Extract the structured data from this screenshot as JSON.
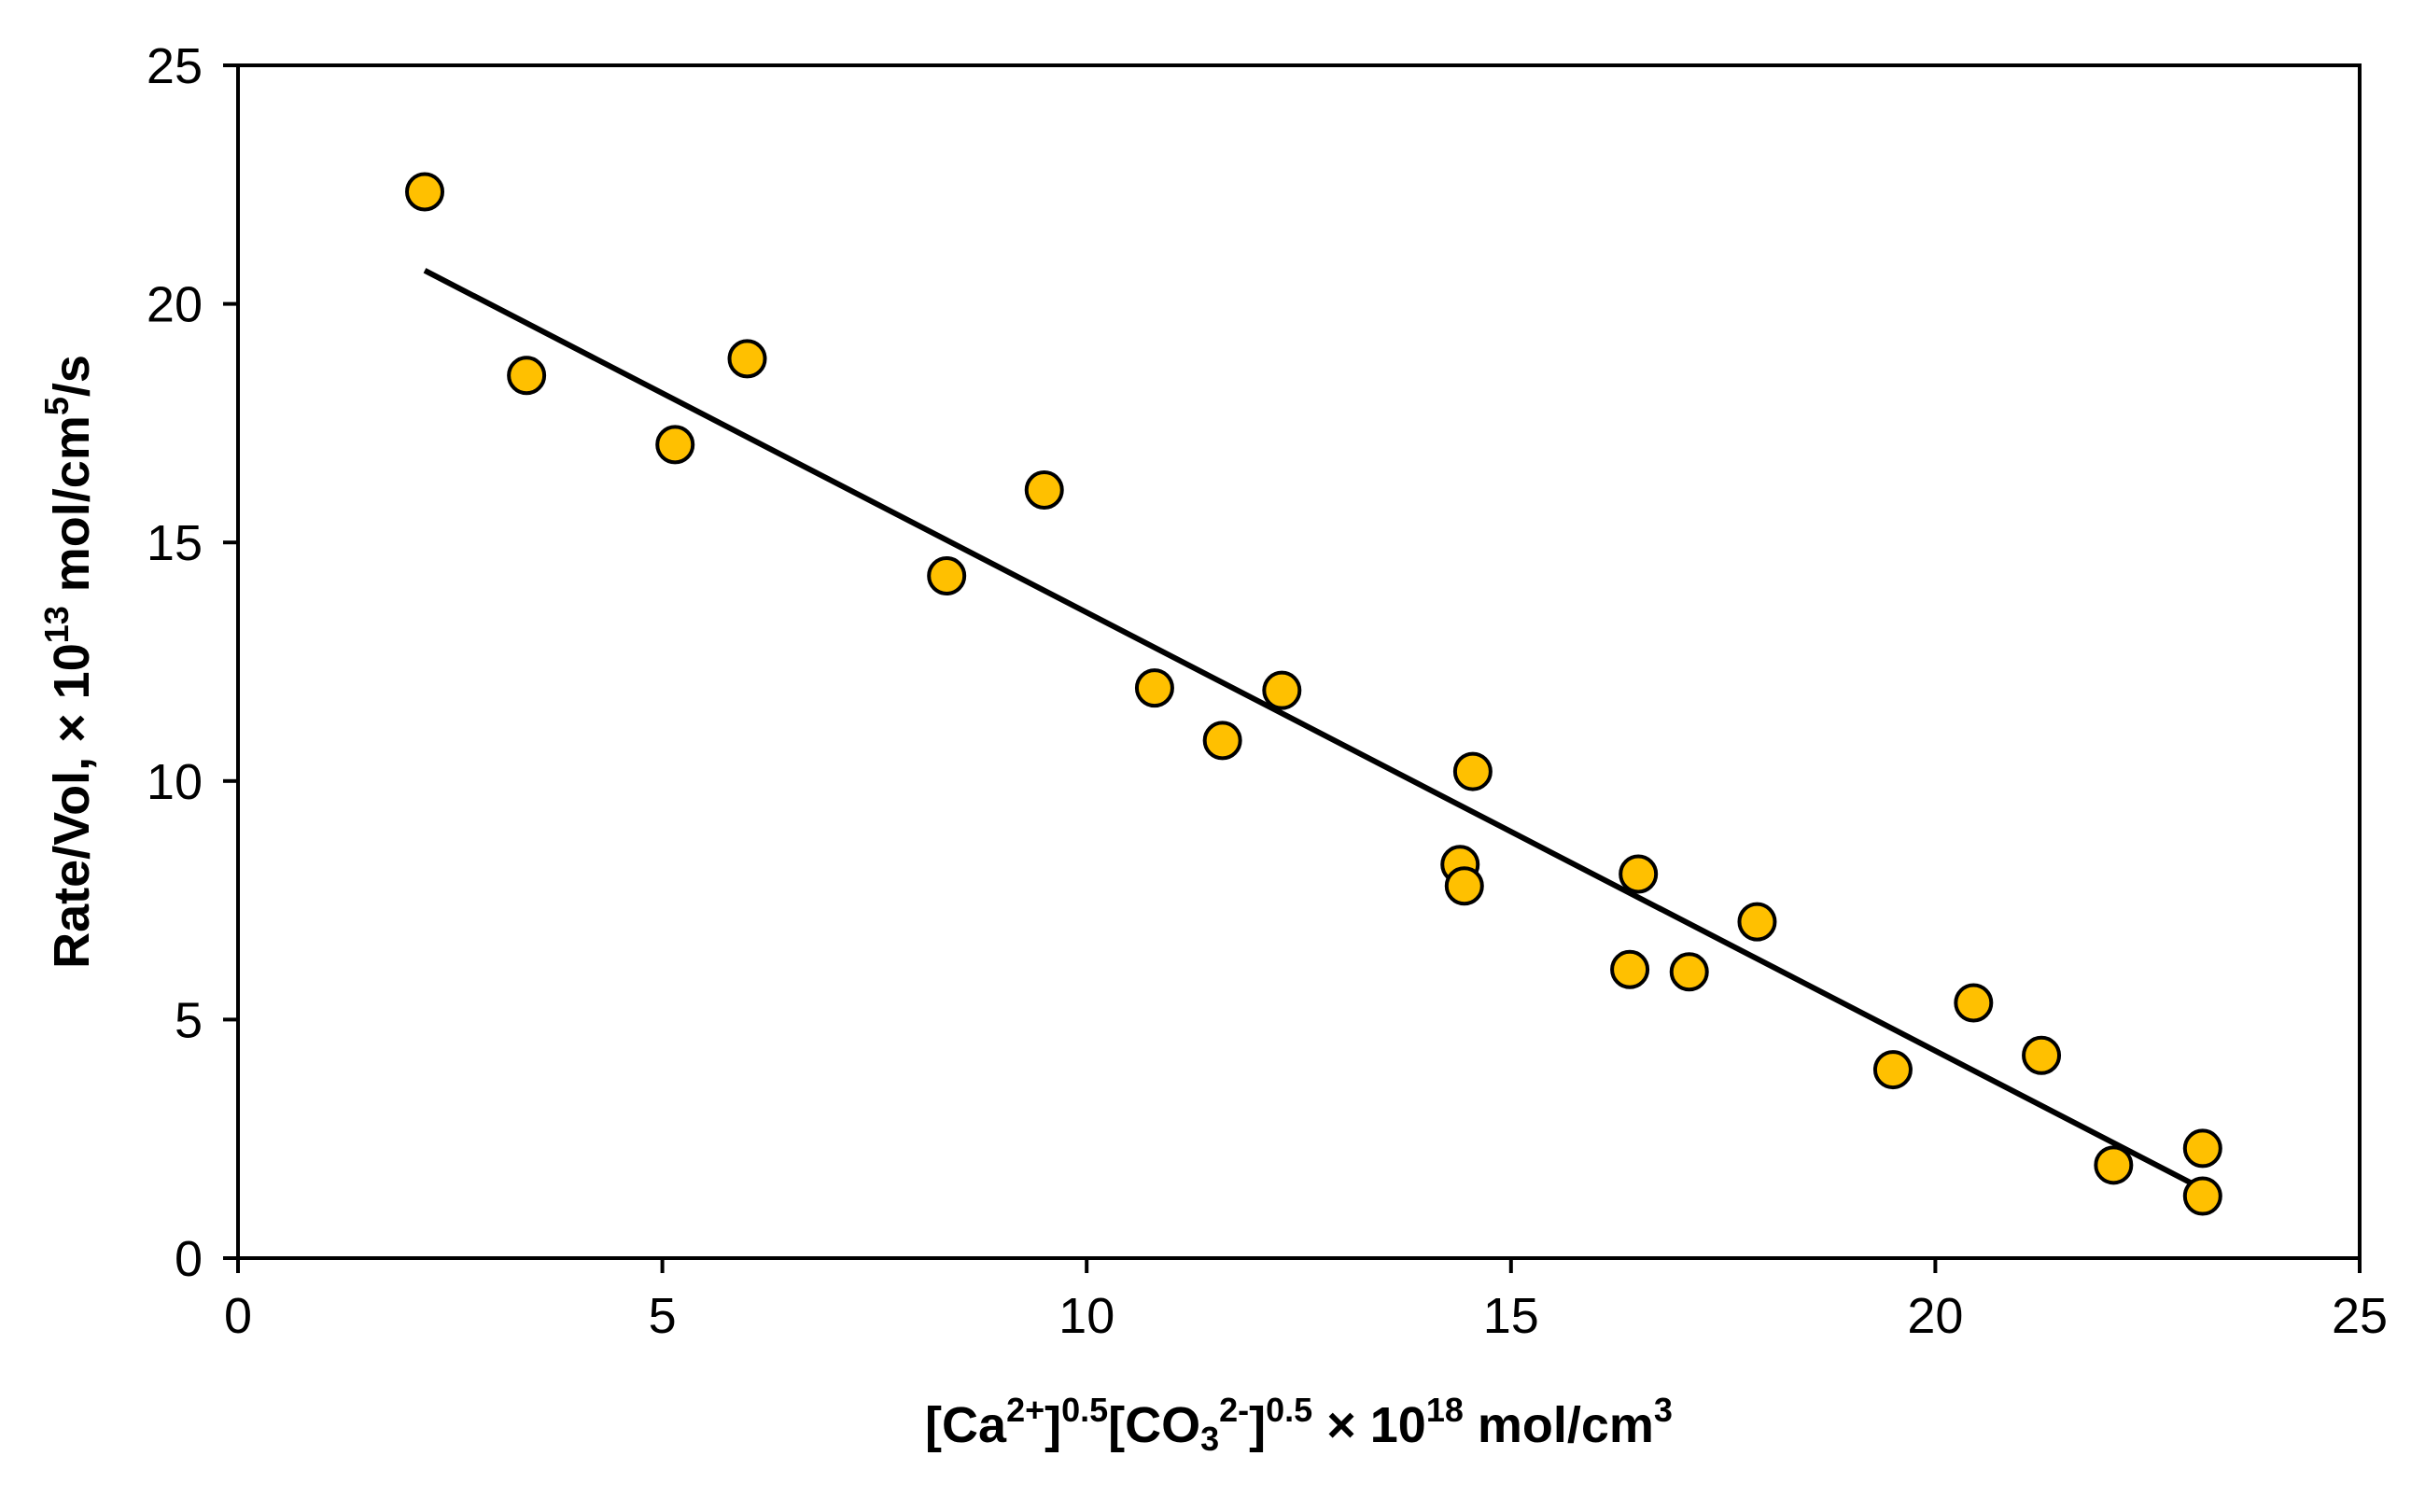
{
  "chart_data": {
    "type": "scatter",
    "title": "",
    "xlabel": {
      "parts": [
        {
          "text": "[Ca",
          "style": "normal"
        },
        {
          "text": "2+",
          "style": "sup"
        },
        {
          "text": "]",
          "style": "normal"
        },
        {
          "text": "0.5",
          "style": "sup"
        },
        {
          "text": "[CO",
          "style": "normal"
        },
        {
          "text": "3",
          "style": "sub"
        },
        {
          "text": "2-",
          "style": "sup"
        },
        {
          "text": "]",
          "style": "normal"
        },
        {
          "text": "0.5",
          "style": "sup"
        },
        {
          "text": " × 10",
          "style": "normal"
        },
        {
          "text": "18",
          "style": "sup"
        },
        {
          "text": " mol/cm",
          "style": "normal"
        },
        {
          "text": "3",
          "style": "sup"
        }
      ]
    },
    "ylabel": {
      "parts": [
        {
          "text": "Rate/Vol, × 10",
          "style": "normal"
        },
        {
          "text": "13",
          "style": "sup"
        },
        {
          "text": " mol/cm",
          "style": "normal"
        },
        {
          "text": "5",
          "style": "sup"
        },
        {
          "text": "/s",
          "style": "normal"
        }
      ]
    },
    "xlim": [
      0,
      25
    ],
    "ylim": [
      0,
      25
    ],
    "xticks": [
      0,
      5,
      10,
      15,
      20,
      25
    ],
    "yticks": [
      0,
      5,
      10,
      15,
      20,
      25
    ],
    "grid": false,
    "legend": "none",
    "marker_fill": "#FFC000",
    "marker_edge": "#000000",
    "line_color": "#000000",
    "series": [
      {
        "name": "data",
        "kind": "scatter",
        "points": [
          [
            2.2,
            22.35
          ],
          [
            3.4,
            18.5
          ],
          [
            5.15,
            17.05
          ],
          [
            6.0,
            18.85
          ],
          [
            8.35,
            14.3
          ],
          [
            9.5,
            16.1
          ],
          [
            10.8,
            11.95
          ],
          [
            11.6,
            10.85
          ],
          [
            12.3,
            11.9
          ],
          [
            14.4,
            8.25
          ],
          [
            14.45,
            7.8
          ],
          [
            14.55,
            10.2
          ],
          [
            16.4,
            6.05
          ],
          [
            16.5,
            8.05
          ],
          [
            17.1,
            6.0
          ],
          [
            17.9,
            7.05
          ],
          [
            19.5,
            3.95
          ],
          [
            20.45,
            5.35
          ],
          [
            21.25,
            4.25
          ],
          [
            22.1,
            1.95
          ],
          [
            23.15,
            1.3
          ],
          [
            23.15,
            2.3
          ]
        ]
      },
      {
        "name": "linear fit",
        "kind": "line",
        "points": [
          [
            2.2,
            20.7
          ],
          [
            23.15,
            1.45
          ]
        ]
      }
    ]
  }
}
